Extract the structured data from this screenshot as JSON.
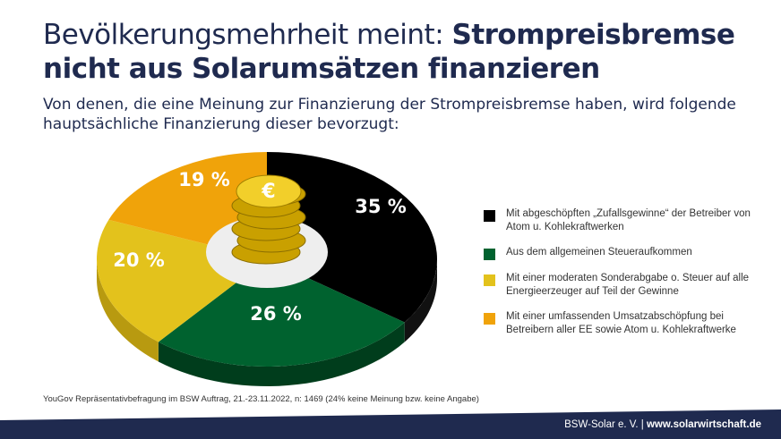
{
  "title": {
    "normal": "Bevölkerungsmehrheit meint: ",
    "bold1": "Strompreisbremse",
    "bold2": "nicht aus Solarumsätzen finanzieren"
  },
  "subtitle": "Von denen, die eine Meinung zur Finanzierung der Strompreisbremse haben, wird folgende hauptsächliche Finanzierung dieser bevorzugt:",
  "chart_data": {
    "type": "pie",
    "title": "",
    "categories": [
      "Mit abgeschöpften „Zufallsgewinne“ der Betreiber von Atom u. Kohlekraftwerken",
      "Aus dem allgemeinen Steueraufkommen",
      "Mit einer moderaten Sonderabgabe o. Steuer auf alle Energieerzeuger auf Teil der Gewinne",
      "Mit einer umfassenden Umsatzabschöpfung bei Betreibern aller EE sowie Atom u. Kohlekraftwerke"
    ],
    "values": [
      35,
      26,
      20,
      19
    ],
    "labels": [
      "35 %",
      "26 %",
      "20 %",
      "19 %"
    ],
    "colors": [
      "#000000",
      "#00622f",
      "#e3c21c",
      "#f0a30a"
    ],
    "side_colors": [
      "#111111",
      "#003d1c",
      "#b89a10",
      "#c4820a"
    ],
    "legend_position": "right"
  },
  "source": "YouGov Repräsentativbefragung im BSW Auftrag, 21.-23.11.2022, n: 1469 (24% keine Meinung bzw. keine Angabe)",
  "footer": {
    "org": "BSW-Solar e. V. | ",
    "url": "www.solarwirtschaft.de"
  },
  "colors": {
    "navy": "#1f2a4f"
  }
}
